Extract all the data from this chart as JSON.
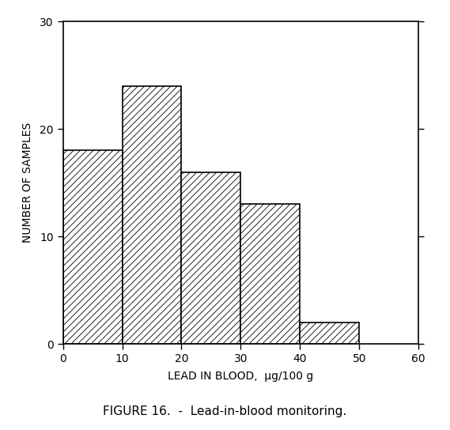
{
  "bin_edges": [
    0,
    10,
    20,
    30,
    40,
    50,
    60
  ],
  "bar_heights": [
    18,
    24,
    16,
    13,
    2,
    0
  ],
  "bar_color": "#ffffff",
  "bar_edgecolor": "#000000",
  "hatch_pattern": "////",
  "xlabel": "LEAD IN BLOOD,  μg/100 g",
  "ylabel": "NUMBER OF SAMPLES",
  "xlim": [
    0,
    60
  ],
  "ylim": [
    0,
    30
  ],
  "yticks": [
    0,
    10,
    20,
    30
  ],
  "xticks": [
    0,
    10,
    20,
    30,
    40,
    50,
    60
  ],
  "axis_label_fontsize": 10,
  "tick_fontsize": 10,
  "caption": "FIGURE 16.  -  Lead-in-blood monitoring.",
  "caption_fontsize": 11,
  "background_color": "#ffffff",
  "linewidth": 1.2,
  "hatch_linewidth": 0.6
}
